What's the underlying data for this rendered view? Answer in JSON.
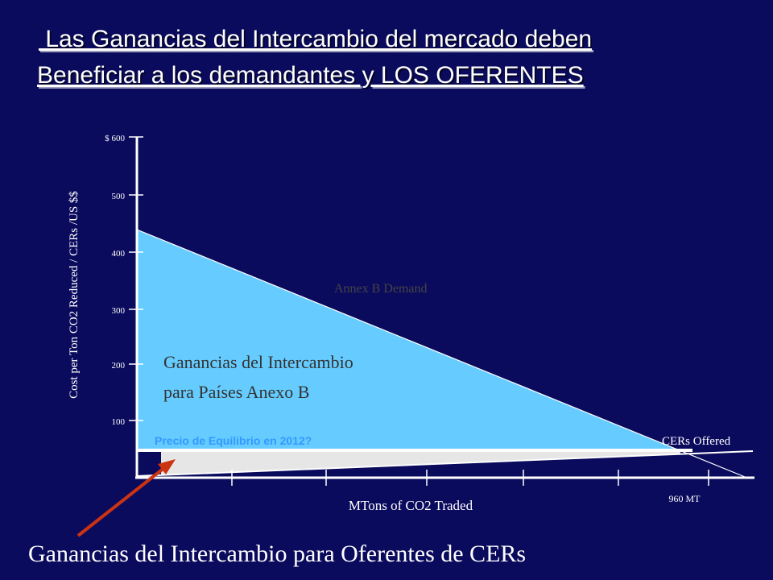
{
  "header": {
    "title_line1": " Las Ganancias del Intercambio del mercado deben",
    "title_line2": "Beneficiar a los demandantes y LOS OFERENTES"
  },
  "diagram": {
    "y_axis_label": "Cost per Ton CO2 Reduced / CERs /US $$",
    "y_tick_labels": [
      "$ 600",
      "500",
      "400",
      "300",
      "200",
      "100"
    ],
    "x_axis_label": "MTons of CO2 Traded",
    "x_note": "960 MT",
    "demand_label": "Annex B Demand",
    "supply_label": "CERs Offered",
    "buyer_gain_line1": "Ganancias del Intercambio",
    "buyer_gain_line2": "para Países Anexo B",
    "price_label": "Precio de Equilibrio en 2012?"
  },
  "footer": {
    "caption": "Ganancias del Intercambio para Oferentes de CERs"
  }
}
